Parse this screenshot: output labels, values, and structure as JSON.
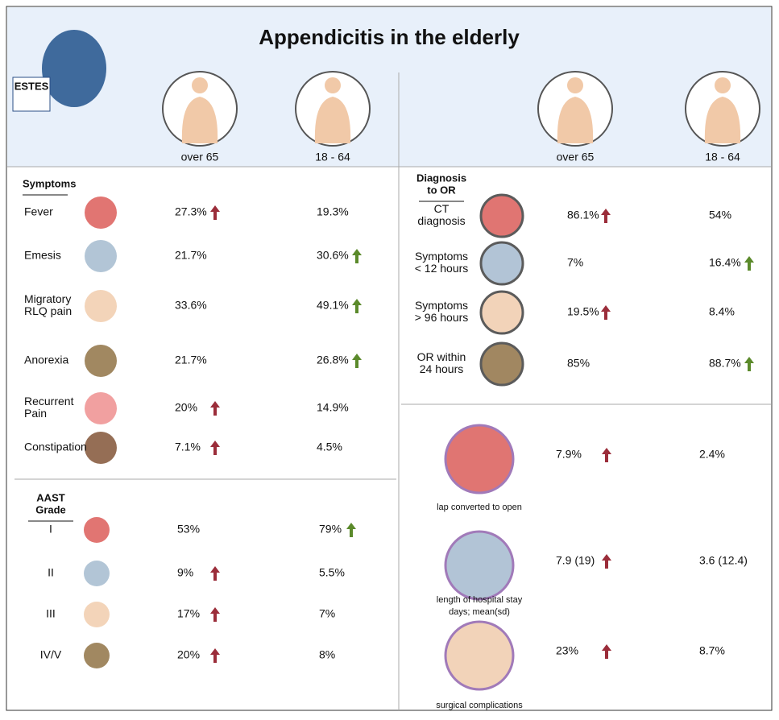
{
  "header": {
    "title": "Appendicitis in the elderly",
    "logo": "ESTES",
    "left_columns": [
      "over 65",
      "18 - 64"
    ],
    "right_columns": [
      "over 65",
      "18 - 64"
    ]
  },
  "symptoms": {
    "title": [
      "Symptoms"
    ],
    "rows": [
      {
        "label": [
          "Fever"
        ],
        "cells": [
          {
            "text": "27.3%",
            "arrow": "#9b2d3a"
          },
          {
            "text": "19.3%"
          }
        ]
      },
      {
        "label": [
          "Emesis"
        ],
        "cells": [
          {
            "text": "21.7%"
          },
          {
            "text": "30.6%",
            "arrow": "#5b8a2b"
          }
        ]
      },
      {
        "label": [
          "Migratory",
          "RLQ pain"
        ],
        "cells": [
          {
            "text": "33.6%"
          },
          {
            "text": "49.1%",
            "arrow": "#5b8a2b"
          }
        ]
      },
      {
        "label": [
          "Anorexia"
        ],
        "cells": [
          {
            "text": "21.7%"
          },
          {
            "text": "26.8%",
            "arrow": "#5b8a2b"
          }
        ]
      },
      {
        "label": [
          "Recurrent",
          "Pain"
        ],
        "cells": [
          {
            "text": "20%",
            "arrow": "#9b2d3a"
          },
          {
            "text": "14.9%"
          }
        ]
      },
      {
        "label": [
          "Constipation"
        ],
        "cells": [
          {
            "text": "7.1%",
            "arrow": "#9b2d3a"
          },
          {
            "text": "4.5%"
          }
        ]
      }
    ]
  },
  "aast": {
    "title": [
      "AAST",
      "Grade"
    ],
    "rows": [
      {
        "label": [
          "I"
        ],
        "cells": [
          {
            "text": "53%"
          },
          {
            "text": "79%",
            "arrow": "#5b8a2b"
          }
        ]
      },
      {
        "label": [
          "II"
        ],
        "cells": [
          {
            "text": "9%",
            "arrow": "#9b2d3a"
          },
          {
            "text": "5.5%"
          }
        ]
      },
      {
        "label": [
          "III"
        ],
        "cells": [
          {
            "text": "17%",
            "arrow": "#9b2d3a"
          },
          {
            "text": "7%"
          }
        ]
      },
      {
        "label": [
          "IV/V"
        ],
        "cells": [
          {
            "text": "20%",
            "arrow": "#9b2d3a"
          },
          {
            "text": "8%"
          }
        ]
      }
    ]
  },
  "diagnosis": {
    "title": [
      "Diagnosis",
      "to OR"
    ],
    "rows": [
      {
        "label": [
          "CT",
          "diagnosis"
        ],
        "cells": [
          {
            "text": "86.1%",
            "arrow": "#9b2d3a"
          },
          {
            "text": "54%"
          }
        ]
      },
      {
        "label": [
          "Symptoms",
          "< 12 hours"
        ],
        "cells": [
          {
            "text": "7%"
          },
          {
            "text": "16.4%",
            "arrow": "#5b8a2b"
          }
        ]
      },
      {
        "label": [
          "Symptoms",
          "> 96 hours"
        ],
        "cells": [
          {
            "text": "19.5%",
            "arrow": "#9b2d3a"
          },
          {
            "text": "8.4%"
          }
        ]
      },
      {
        "label": [
          "OR within",
          "24 hours"
        ],
        "cells": [
          {
            "text": "85%"
          },
          {
            "text": "88.7%",
            "arrow": "#5b8a2b"
          }
        ]
      }
    ]
  },
  "outcomes": {
    "rows": [
      {
        "label": [
          "lap converted to open"
        ],
        "cells": [
          {
            "text": "7.9%",
            "arrow": "#9b2d3a"
          },
          {
            "text": "2.4%"
          }
        ]
      },
      {
        "label": [
          "length of hospital stay",
          "days; mean(sd)"
        ],
        "cells": [
          {
            "text": "7.9 (19)",
            "arrow": "#9b2d3a"
          },
          {
            "text": "3.6 (12.4)"
          }
        ]
      },
      {
        "label": [
          "surgical complications"
        ],
        "cells": [
          {
            "text": "23%",
            "arrow": "#9b2d3a"
          },
          {
            "text": "8.7%"
          }
        ]
      }
    ]
  }
}
